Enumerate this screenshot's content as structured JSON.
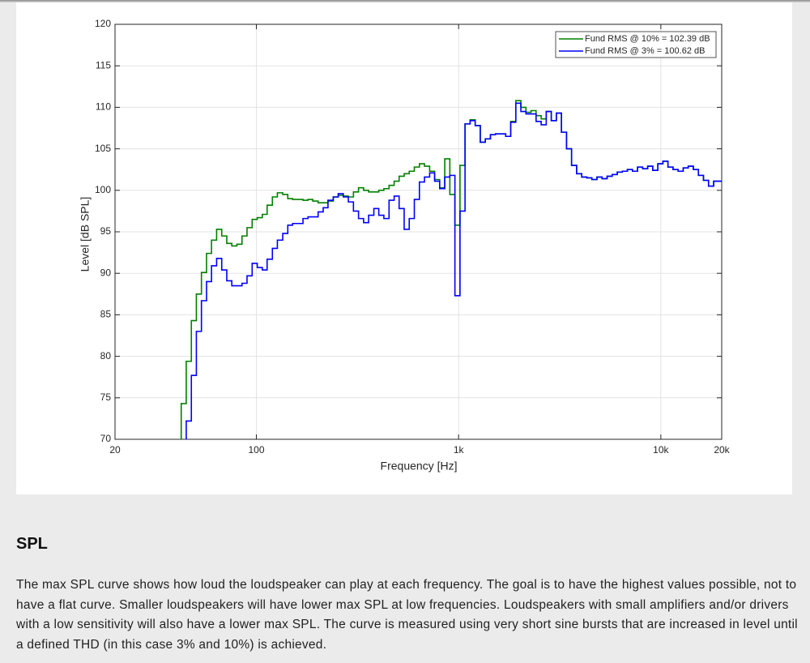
{
  "chart_data": {
    "type": "step-line",
    "xlabel": "Frequency [Hz]",
    "ylabel": "Level [dB SPL]",
    "xscale": "log",
    "grid": true,
    "legend": "upper-right",
    "xlim": [
      20,
      20000
    ],
    "ylim": [
      70,
      120
    ],
    "xticks": [
      20,
      100,
      {
        "value": 1000,
        "label": "1k"
      },
      {
        "value": 10000,
        "label": "10k"
      },
      {
        "value": 20000,
        "label": "20k"
      }
    ],
    "yticks": [
      70,
      75,
      80,
      85,
      90,
      95,
      100,
      105,
      110,
      115,
      120
    ],
    "x": [
      42.5,
      45,
      47.7,
      50.5,
      53.5,
      56.7,
      60,
      63.6,
      67.4,
      71.4,
      75.6,
      80.1,
      84.9,
      89.9,
      95.3,
      101,
      107,
      113,
      120,
      127,
      135,
      143,
      151,
      160,
      170,
      180,
      190,
      202,
      214,
      226,
      240,
      254,
      269,
      285,
      302,
      320,
      339,
      359,
      381,
      403,
      427,
      453,
      480,
      508,
      538,
      570,
      604,
      640,
      678,
      719,
      761,
      806,
      854,
      905,
      959,
      1016,
      1076,
      1140,
      1208,
      1280,
      1356,
      1437,
      1522,
      1613,
      1709,
      1810,
      1918,
      2032,
      2153,
      2281,
      2416,
      2560,
      2712,
      2873,
      3044,
      3225,
      3417,
      3620,
      3835,
      4063,
      4305,
      4561,
      4832,
      5119,
      5424,
      5746,
      6088,
      6450,
      6833,
      7240,
      7670,
      8126,
      8609,
      9121,
      9664,
      10238,
      10847,
      11492,
      12175,
      12899,
      13666,
      14479,
      15340,
      16252,
      17218,
      18242,
      19326
    ],
    "series": [
      {
        "name": "Fund RMS @ 10% = 102.39 dB",
        "color": "#008000",
        "values": [
          74.3,
          79.4,
          84.3,
          87.5,
          90.1,
          92.4,
          94.0,
          95.3,
          94.5,
          93.6,
          93.3,
          93.5,
          94.5,
          95.5,
          96.5,
          96.7,
          97.1,
          98.2,
          99.2,
          99.7,
          99.5,
          99.0,
          98.9,
          98.9,
          98.8,
          98.9,
          98.7,
          98.5,
          98.5,
          98.7,
          99.2,
          99.4,
          99.3,
          99.2,
          99.8,
          100.3,
          100.0,
          99.8,
          99.8,
          100.0,
          100.2,
          100.6,
          101.1,
          101.7,
          102.0,
          102.3,
          102.8,
          103.2,
          102.9,
          102.3,
          101.3,
          100.3,
          103.8,
          99.5,
          95.8,
          103.0,
          108.0,
          108.5,
          107.8,
          105.8,
          106.2,
          106.7,
          106.8,
          106.8,
          106.5,
          108.3,
          110.8,
          110.0,
          109.4,
          109.6,
          109.0,
          108.6,
          109.5,
          108.4,
          109.3,
          107.0,
          105.0,
          103.0,
          102.0,
          101.6,
          101.5,
          101.3,
          101.6,
          101.4,
          101.7,
          101.9,
          102.2,
          102.3,
          102.5,
          102.3,
          102.8,
          102.6,
          102.9,
          102.4,
          103.2,
          103.5,
          102.8,
          102.5,
          102.3,
          102.7,
          102.9,
          102.5,
          101.8,
          101.2,
          100.5,
          101.1,
          101.1
        ]
      },
      {
        "name": "Fund RMS @ 3% = 100.62 dB",
        "color": "#0000ff",
        "values": [
          null,
          72.2,
          77.7,
          83.0,
          86.7,
          89.0,
          90.9,
          91.8,
          90.4,
          89.1,
          88.5,
          88.5,
          88.8,
          89.7,
          91.2,
          90.7,
          90.4,
          91.7,
          93.0,
          94.0,
          94.8,
          95.8,
          96.0,
          96.0,
          96.6,
          96.8,
          96.8,
          97.4,
          97.9,
          98.8,
          99.2,
          99.6,
          99.2,
          98.6,
          97.5,
          96.6,
          96.1,
          97.0,
          97.8,
          97.0,
          96.6,
          98.8,
          99.3,
          97.8,
          95.3,
          96.6,
          98.9,
          101.0,
          101.6,
          102.1,
          101.1,
          100.2,
          101.6,
          101.8,
          87.3,
          97.5,
          108.0,
          108.4,
          107.8,
          105.8,
          106.2,
          106.7,
          106.8,
          106.8,
          106.5,
          108.2,
          110.5,
          109.5,
          109.2,
          109.2,
          108.3,
          107.9,
          109.5,
          108.4,
          109.3,
          107.0,
          105.0,
          103.0,
          102.0,
          101.6,
          101.5,
          101.3,
          101.6,
          101.4,
          101.7,
          101.9,
          102.2,
          102.3,
          102.5,
          102.3,
          102.8,
          102.6,
          102.9,
          102.4,
          103.2,
          103.5,
          102.8,
          102.5,
          102.3,
          102.7,
          102.9,
          102.5,
          101.8,
          101.2,
          100.5,
          101.1,
          101.1
        ]
      }
    ]
  },
  "heading": "SPL",
  "paragraph": "The max SPL curve shows how loud the loudspeaker can play at each frequency. The goal is to have the highest values possible, not to have a flat curve. Smaller loudspeakers will have lower max SPL at low frequencies. Loudspeakers with small amplifiers and/or drivers with a low sensitivity will also have a lower max SPL. The curve is measured using very short sine bursts that are increased in level until a defined THD (in this case 3% and 10%) is achieved."
}
